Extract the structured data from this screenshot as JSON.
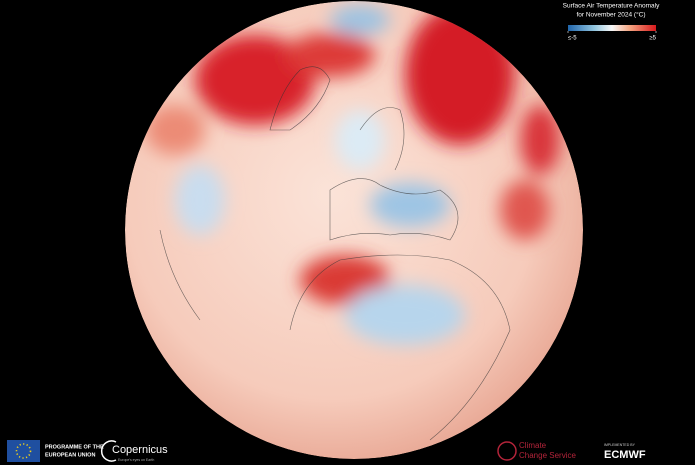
{
  "title": {
    "line1": "Surface Air Temperature Anomaly",
    "line2": "for November 2024 (°C)"
  },
  "legend": {
    "range": [
      -5,
      5
    ],
    "ticks": [
      {
        "value": -5,
        "label": "≤-5"
      },
      {
        "value": 5,
        "label": "≥5"
      }
    ]
  },
  "footer": {
    "eu": {
      "line1": "PROGRAMME OF THE",
      "line2": "EUROPEAN UNION"
    },
    "copernicus": {
      "name": "Copernicus",
      "tagline": "Europe's eyes on Earth"
    },
    "c3s": {
      "line1": "Climate",
      "line2": "Change Service"
    },
    "ecmwf": {
      "caption": "IMPLEMENTED BY",
      "name": "ECMWF"
    }
  }
}
